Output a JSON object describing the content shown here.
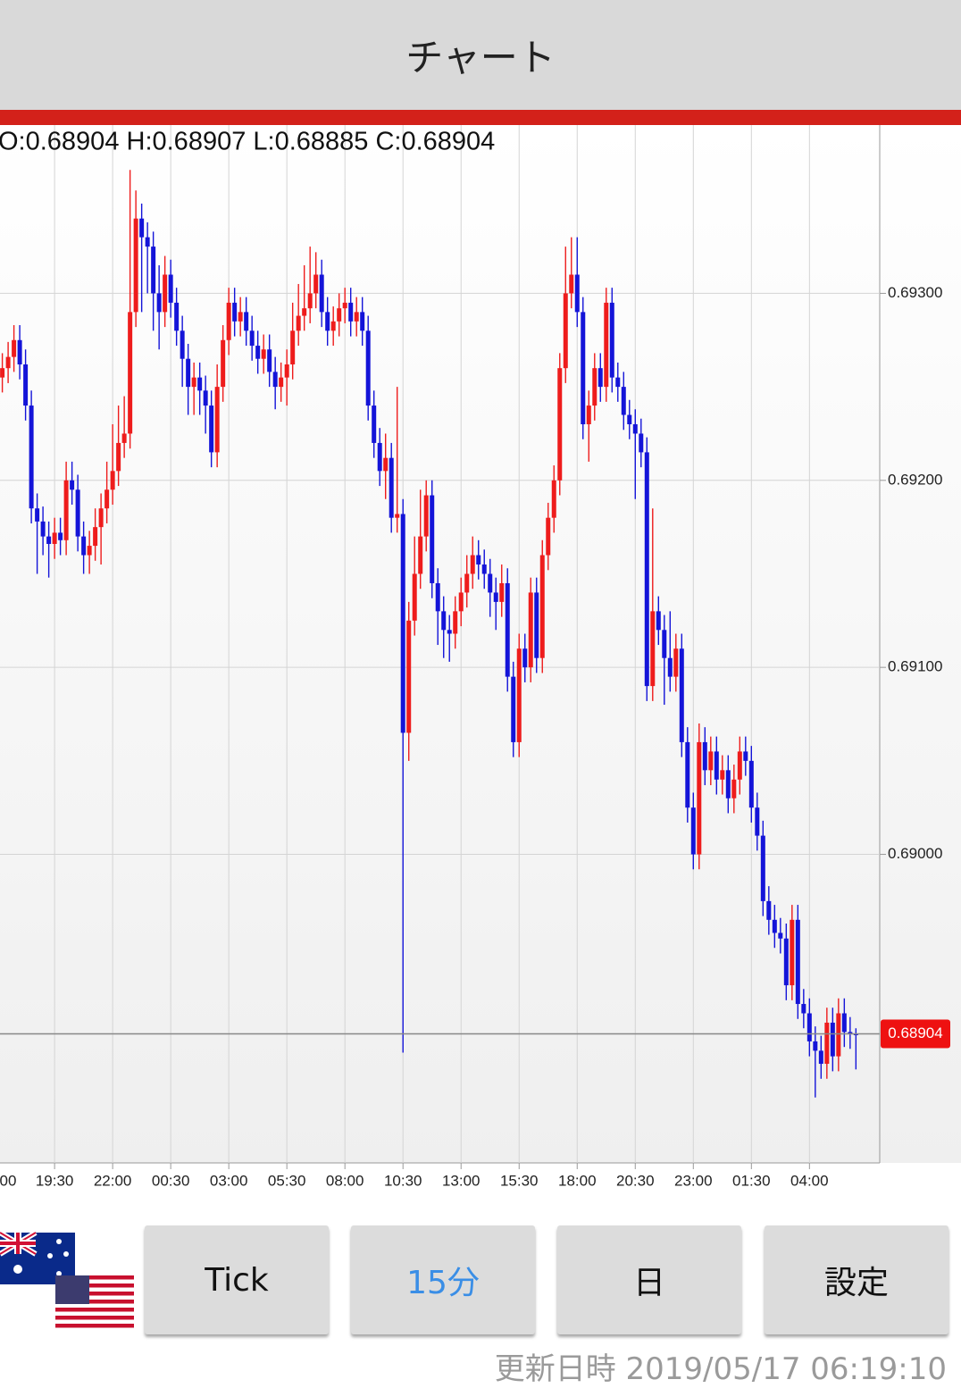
{
  "header": {
    "title": "チャート"
  },
  "chart_data": {
    "type": "candlestick",
    "ohlc_text": "O:0.68904 H:0.68907 L:0.68885 C:0.68904",
    "up_color": "#ee1c1c",
    "down_color": "#1414d8",
    "open": [
      0.69255,
      0.6926,
      0.69266,
      0.69275,
      0.69262,
      0.6924,
      0.69185,
      0.69178,
      0.6917,
      0.69166,
      0.69172,
      0.69168,
      0.692,
      0.69195,
      0.6917,
      0.6916,
      0.69165,
      0.69175,
      0.69185,
      0.69195,
      0.69205,
      0.6922,
      0.69225,
      0.6929,
      0.6934,
      0.6933,
      0.69325,
      0.693,
      0.6929,
      0.6931,
      0.69295,
      0.6928,
      0.69265,
      0.6925,
      0.69255,
      0.69248,
      0.6924,
      0.69215,
      0.6925,
      0.69275,
      0.69295,
      0.69285,
      0.6929,
      0.6928,
      0.69272,
      0.69265,
      0.6927,
      0.69258,
      0.6925,
      0.69255,
      0.69262,
      0.6928,
      0.69288,
      0.69292,
      0.693,
      0.6931,
      0.6929,
      0.6928,
      0.69285,
      0.69292,
      0.69295,
      0.69285,
      0.6929,
      0.6928,
      0.6924,
      0.6922,
      0.69205,
      0.69212,
      0.6918,
      0.69182,
      0.69065,
      0.69125,
      0.6915,
      0.6917,
      0.69192,
      0.69145,
      0.6913,
      0.6912,
      0.69118,
      0.6913,
      0.6914,
      0.6915,
      0.6916,
      0.69155,
      0.6915,
      0.6914,
      0.69135,
      0.69145,
      0.69095,
      0.6906,
      0.6911,
      0.691,
      0.6914,
      0.69105,
      0.6916,
      0.6918,
      0.692,
      0.6926,
      0.693,
      0.6931,
      0.6929,
      0.6923,
      0.6924,
      0.6926,
      0.6925,
      0.69295,
      0.69255,
      0.6925,
      0.69235,
      0.6923,
      0.69225,
      0.69215,
      0.6909,
      0.6913,
      0.6912,
      0.69105,
      0.69095,
      0.6911,
      0.6906,
      0.69025,
      0.69,
      0.6906,
      0.69045,
      0.69055,
      0.6904,
      0.69045,
      0.6903,
      0.6904,
      0.69055,
      0.6905,
      0.69025,
      0.6901,
      0.68975,
      0.68965,
      0.68958,
      0.68955,
      0.6893,
      0.68965,
      0.6892,
      0.68915,
      0.689,
      0.68895,
      0.68888,
      0.6891,
      0.68892,
      0.68915,
      0.68905,
      0.68904
    ],
    "high": [
      0.69268,
      0.69274,
      0.69283,
      0.69283,
      0.6927,
      0.69248,
      0.69193,
      0.69186,
      0.69178,
      0.6918,
      0.6918,
      0.6921,
      0.6921,
      0.69203,
      0.69178,
      0.69173,
      0.69185,
      0.69193,
      0.6921,
      0.6923,
      0.6924,
      0.69245,
      0.69366,
      0.69355,
      0.69348,
      0.69338,
      0.69333,
      0.69315,
      0.6932,
      0.69318,
      0.69303,
      0.69288,
      0.69273,
      0.69263,
      0.69263,
      0.69256,
      0.69248,
      0.69262,
      0.69283,
      0.69303,
      0.69303,
      0.69298,
      0.69298,
      0.69288,
      0.6928,
      0.69278,
      0.69278,
      0.69266,
      0.69263,
      0.6927,
      0.69295,
      0.69305,
      0.69315,
      0.69325,
      0.69322,
      0.69318,
      0.69298,
      0.69293,
      0.693,
      0.69303,
      0.69303,
      0.69298,
      0.69298,
      0.69288,
      0.69248,
      0.69228,
      0.69225,
      0.6922,
      0.6925,
      0.6919,
      0.69135,
      0.6917,
      0.69195,
      0.692,
      0.692,
      0.69153,
      0.69138,
      0.69128,
      0.69138,
      0.69148,
      0.6916,
      0.6917,
      0.69168,
      0.69163,
      0.69158,
      0.69148,
      0.69155,
      0.69153,
      0.69103,
      0.69118,
      0.69118,
      0.69148,
      0.69148,
      0.69168,
      0.69188,
      0.69208,
      0.69268,
      0.69325,
      0.6933,
      0.6933,
      0.69298,
      0.69248,
      0.69268,
      0.69268,
      0.69303,
      0.69303,
      0.69263,
      0.69258,
      0.69243,
      0.69238,
      0.69233,
      0.69223,
      0.69185,
      0.69138,
      0.69128,
      0.6913,
      0.69118,
      0.69118,
      0.69068,
      0.69033,
      0.6907,
      0.69068,
      0.69063,
      0.69063,
      0.69053,
      0.69053,
      0.69048,
      0.69063,
      0.69063,
      0.69058,
      0.69033,
      0.69018,
      0.68983,
      0.68973,
      0.68966,
      0.68963,
      0.68973,
      0.68973,
      0.68928,
      0.68923,
      0.68908,
      0.68903,
      0.68918,
      0.68918,
      0.68923,
      0.68923,
      0.68913,
      0.68907
    ],
    "low": [
      0.69247,
      0.69252,
      0.69258,
      0.69254,
      0.69232,
      0.69177,
      0.6915,
      0.6916,
      0.69148,
      0.69158,
      0.6916,
      0.6916,
      0.69187,
      0.69162,
      0.6915,
      0.6915,
      0.69157,
      0.69155,
      0.69177,
      0.69187,
      0.69197,
      0.69212,
      0.69217,
      0.69282,
      0.6929,
      0.693,
      0.6928,
      0.6927,
      0.69282,
      0.69287,
      0.69272,
      0.6925,
      0.69235,
      0.69235,
      0.69235,
      0.69225,
      0.69207,
      0.69207,
      0.69242,
      0.69267,
      0.69277,
      0.69277,
      0.69272,
      0.69264,
      0.69257,
      0.69257,
      0.6925,
      0.69238,
      0.69242,
      0.6924,
      0.69254,
      0.69272,
      0.6928,
      0.69284,
      0.69292,
      0.69282,
      0.69272,
      0.69272,
      0.69277,
      0.69284,
      0.69277,
      0.69277,
      0.69272,
      0.69232,
      0.69212,
      0.69197,
      0.6919,
      0.69172,
      0.69172,
      0.68894,
      0.6905,
      0.69117,
      0.69142,
      0.69162,
      0.69137,
      0.69112,
      0.69105,
      0.69103,
      0.6911,
      0.69122,
      0.69132,
      0.69142,
      0.69147,
      0.69142,
      0.69127,
      0.6912,
      0.69127,
      0.69087,
      0.69052,
      0.69052,
      0.69092,
      0.69092,
      0.69097,
      0.69097,
      0.69152,
      0.69172,
      0.69192,
      0.69252,
      0.69292,
      0.69282,
      0.69222,
      0.6921,
      0.69232,
      0.69242,
      0.69242,
      0.69247,
      0.69242,
      0.69227,
      0.69222,
      0.6919,
      0.69207,
      0.69082,
      0.69082,
      0.69112,
      0.6908,
      0.69087,
      0.69087,
      0.69052,
      0.69017,
      0.68992,
      0.68992,
      0.69037,
      0.69037,
      0.69032,
      0.69032,
      0.69022,
      0.69022,
      0.69032,
      0.69042,
      0.69017,
      0.69002,
      0.68967,
      0.68957,
      0.6895,
      0.68947,
      0.68922,
      0.68922,
      0.68912,
      0.68907,
      0.68892,
      0.6887,
      0.6888,
      0.6888,
      0.68884,
      0.68884,
      0.68897,
      0.68896,
      0.68885
    ],
    "close": [
      0.6926,
      0.69266,
      0.69275,
      0.69262,
      0.6924,
      0.69185,
      0.69178,
      0.6917,
      0.69166,
      0.69172,
      0.69168,
      0.692,
      0.69195,
      0.6917,
      0.6916,
      0.69165,
      0.69175,
      0.69185,
      0.69195,
      0.69205,
      0.6922,
      0.69225,
      0.6929,
      0.6934,
      0.6933,
      0.69325,
      0.693,
      0.6929,
      0.6931,
      0.69295,
      0.6928,
      0.69265,
      0.6925,
      0.69255,
      0.69248,
      0.6924,
      0.69215,
      0.6925,
      0.69275,
      0.69295,
      0.69285,
      0.6929,
      0.6928,
      0.69272,
      0.69265,
      0.6927,
      0.69258,
      0.6925,
      0.69255,
      0.69262,
      0.6928,
      0.69288,
      0.69292,
      0.693,
      0.6931,
      0.6929,
      0.6928,
      0.69285,
      0.69292,
      0.69295,
      0.69285,
      0.6929,
      0.6928,
      0.6924,
      0.6922,
      0.69205,
      0.69212,
      0.6918,
      0.69182,
      0.69065,
      0.69125,
      0.6915,
      0.6917,
      0.69192,
      0.69145,
      0.6913,
      0.6912,
      0.69118,
      0.6913,
      0.6914,
      0.6915,
      0.6916,
      0.69155,
      0.6915,
      0.6914,
      0.69135,
      0.69145,
      0.69095,
      0.6906,
      0.6911,
      0.691,
      0.6914,
      0.69105,
      0.6916,
      0.6918,
      0.692,
      0.6926,
      0.693,
      0.6931,
      0.6929,
      0.6923,
      0.6924,
      0.6926,
      0.6925,
      0.69295,
      0.69255,
      0.6925,
      0.69235,
      0.6923,
      0.69225,
      0.69215,
      0.6909,
      0.6913,
      0.6912,
      0.69105,
      0.69095,
      0.6911,
      0.6906,
      0.69025,
      0.69,
      0.6906,
      0.69045,
      0.69055,
      0.6904,
      0.69045,
      0.6903,
      0.6904,
      0.69055,
      0.6905,
      0.69025,
      0.6901,
      0.68975,
      0.68965,
      0.68958,
      0.68955,
      0.6893,
      0.68965,
      0.6892,
      0.68915,
      0.689,
      0.68895,
      0.68888,
      0.6891,
      0.68892,
      0.68915,
      0.68905,
      0.68904,
      0.68904
    ],
    "xlim": [
      -0.4,
      151.1
    ],
    "xticks": [
      {
        "value": -1,
        "label": "00"
      },
      {
        "value": 9,
        "label": "19:30"
      },
      {
        "value": 19,
        "label": "22:00"
      },
      {
        "value": 29,
        "label": "00:30"
      },
      {
        "value": 39,
        "label": "03:00"
      },
      {
        "value": 49,
        "label": "05:30"
      },
      {
        "value": 59,
        "label": "08:00"
      },
      {
        "value": 69,
        "label": "10:30"
      },
      {
        "value": 79,
        "label": "13:00"
      },
      {
        "value": 89,
        "label": "15:30"
      },
      {
        "value": 99,
        "label": "18:00"
      },
      {
        "value": 109,
        "label": "20:30"
      },
      {
        "value": 119,
        "label": "23:00"
      },
      {
        "value": 129,
        "label": "01:30"
      },
      {
        "value": 139,
        "label": "04:00"
      }
    ],
    "ylim": [
      0.68835,
      0.6939
    ],
    "yticks": [
      {
        "value": 0.69,
        "label": "0.69000"
      },
      {
        "value": 0.691,
        "label": "0.69100"
      },
      {
        "value": 0.692,
        "label": "0.69200"
      },
      {
        "value": 0.693,
        "label": "0.69300"
      }
    ],
    "grid": true,
    "last_price": 0.68904,
    "last_price_color": "#ee1111"
  },
  "buttons": [
    {
      "label": "Tick",
      "active": false
    },
    {
      "label": "15分",
      "active": true
    },
    {
      "label": "日",
      "active": false
    },
    {
      "label": "設定",
      "active": false
    }
  ],
  "active_color": "#3a8ee6",
  "footer": {
    "label": "更新日時",
    "timestamp": "2019/05/17 06:19:10"
  }
}
